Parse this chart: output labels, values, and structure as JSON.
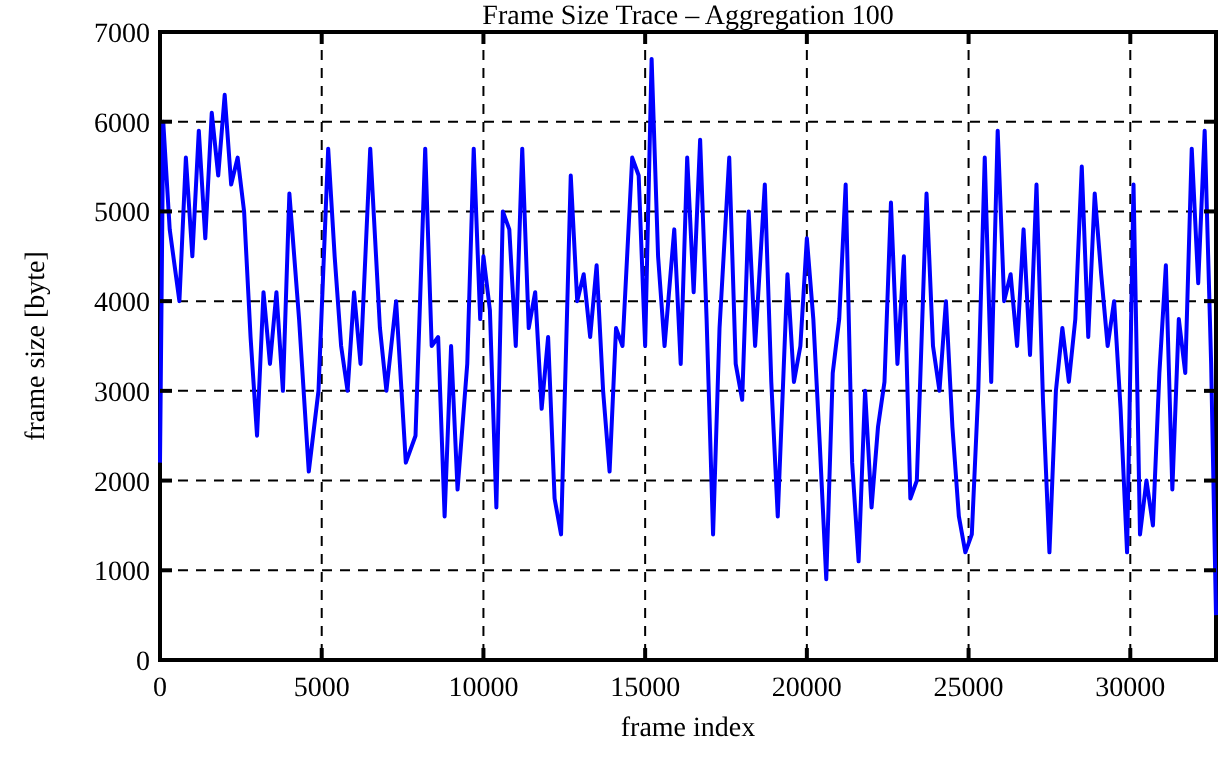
{
  "chart_data": {
    "type": "line",
    "title": "Frame Size Trace – Aggregation 100",
    "xlabel": "frame index",
    "ylabel": "frame size [byte]",
    "xlim": [
      0,
      32650
    ],
    "xticks": [
      0,
      5000,
      10000,
      15000,
      20000,
      25000,
      30000
    ],
    "ylim": [
      0,
      7000
    ],
    "yticks": [
      0,
      1000,
      2000,
      3000,
      4000,
      5000,
      6000,
      7000
    ],
    "grid": true,
    "line_style": "solid",
    "series": [
      {
        "color": "#0000ff",
        "x": [
          0,
          100,
          300,
          600,
          800,
          1000,
          1200,
          1400,
          1600,
          1800,
          2000,
          2200,
          2400,
          2600,
          2800,
          3000,
          3200,
          3400,
          3600,
          3800,
          4000,
          4300,
          4600,
          4900,
          5200,
          5400,
          5600,
          5800,
          6000,
          6200,
          6500,
          6800,
          7000,
          7300,
          7600,
          7900,
          8200,
          8400,
          8600,
          8800,
          9000,
          9200,
          9500,
          9700,
          9900,
          10000,
          10200,
          10400,
          10600,
          10800,
          11000,
          11200,
          11400,
          11600,
          11800,
          12000,
          12200,
          12400,
          12700,
          12900,
          13100,
          13300,
          13500,
          13700,
          13900,
          14100,
          14300,
          14600,
          14800,
          15000,
          15200,
          15400,
          15600,
          15900,
          16100,
          16300,
          16500,
          16700,
          16900,
          17100,
          17300,
          17600,
          17800,
          18000,
          18200,
          18400,
          18700,
          18900,
          19100,
          19400,
          19600,
          19800,
          20000,
          20200,
          20400,
          20600,
          20800,
          21000,
          21200,
          21400,
          21600,
          21800,
          22000,
          22200,
          22400,
          22600,
          22800,
          23000,
          23200,
          23400,
          23700,
          23900,
          24100,
          24300,
          24500,
          24700,
          24900,
          25100,
          25300,
          25500,
          25700,
          25900,
          26100,
          26300,
          26500,
          26700,
          26900,
          27100,
          27300,
          27500,
          27700,
          27900,
          28100,
          28300,
          28500,
          28700,
          28900,
          29100,
          29300,
          29500,
          29700,
          29900,
          30100,
          30300,
          30500,
          30700,
          30900,
          31100,
          31300,
          31500,
          31700,
          31900,
          32100,
          32300,
          32500,
          32650
        ],
        "values": [
          2200,
          6000,
          4800,
          4000,
          5600,
          4500,
          5900,
          4700,
          6100,
          5400,
          6300,
          5300,
          5600,
          5000,
          3600,
          2500,
          4100,
          3300,
          4100,
          3000,
          5200,
          3800,
          2100,
          3000,
          5700,
          4500,
          3500,
          3000,
          4100,
          3300,
          5700,
          3700,
          3000,
          4000,
          2200,
          2500,
          5700,
          3500,
          3600,
          1600,
          3500,
          1900,
          3300,
          5700,
          3800,
          4500,
          3900,
          1700,
          5000,
          4800,
          3500,
          5700,
          3700,
          4100,
          2800,
          3600,
          1800,
          1400,
          5400,
          4000,
          4300,
          3600,
          4400,
          3000,
          2100,
          3700,
          3500,
          5600,
          5400,
          3500,
          6700,
          4500,
          3500,
          4800,
          3300,
          5600,
          4100,
          5800,
          3800,
          1400,
          3700,
          5600,
          3300,
          2900,
          5000,
          3500,
          5300,
          3100,
          1600,
          4300,
          3100,
          3500,
          4700,
          3800,
          2400,
          900,
          3200,
          3800,
          5300,
          2200,
          1100,
          3000,
          1700,
          2600,
          3100,
          5100,
          3300,
          4500,
          1800,
          2000,
          5200,
          3500,
          3000,
          4000,
          2600,
          1600,
          1200,
          1400,
          3000,
          5600,
          3100,
          5900,
          4000,
          4300,
          3500,
          4800,
          3400,
          5300,
          2900,
          1200,
          3000,
          3700,
          3100,
          3800,
          5500,
          3600,
          5200,
          4300,
          3500,
          4000,
          2800,
          1200,
          5300,
          1400,
          2000,
          1500,
          3200,
          4400,
          1900,
          3800,
          3200,
          5700,
          4200,
          5900,
          3300,
          500
        ]
      }
    ]
  }
}
